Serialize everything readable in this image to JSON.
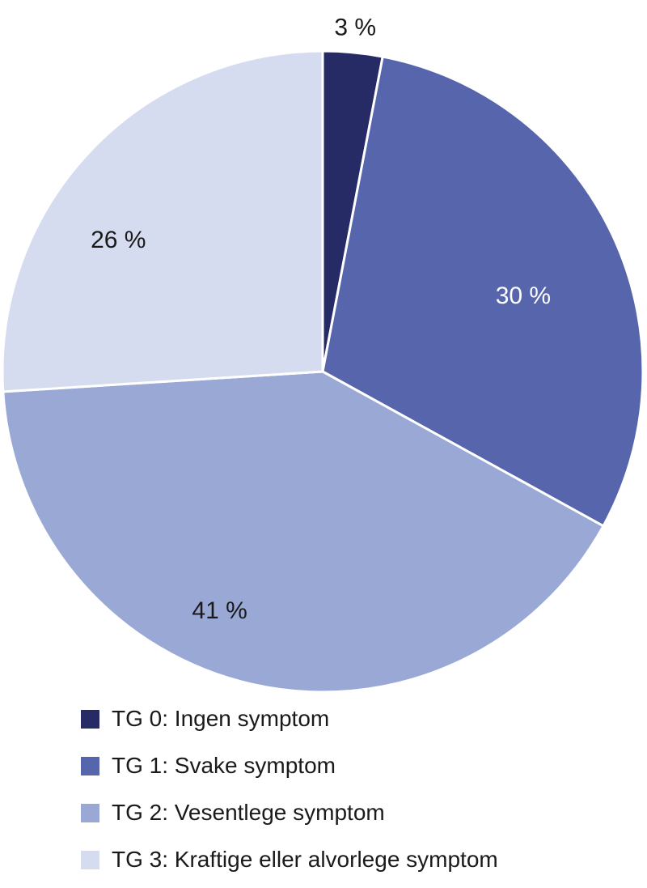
{
  "chart_data": {
    "type": "pie",
    "title": "",
    "categories": [
      "TG 0: Ingen symptom",
      "TG 1: Svake symptom",
      "TG 2: Vesentlege symptom",
      "TG 3: Kraftige eller alvorlege symptom"
    ],
    "values": [
      3,
      30,
      41,
      26
    ],
    "unit": "%",
    "slice_labels": [
      "3 %",
      "30 %",
      "41 %",
      "26 %"
    ],
    "colors": [
      "#262B66",
      "#5766AC",
      "#9AA8D6",
      "#D6DCF0"
    ],
    "label_colors": [
      "#1a1a1a",
      "#ffffff",
      "#1a1a1a",
      "#1a1a1a"
    ],
    "separator_color": "#ffffff",
    "start_angle_deg": 0,
    "direction": "clockwise",
    "legend_position": "bottom-left",
    "label_positions": [
      {
        "a": 5.4,
        "r": 1.08
      },
      {
        "a": 69.1,
        "r": 0.67
      },
      {
        "a": 203.4,
        "r": 0.81
      },
      {
        "a": 302.9,
        "r": 0.76
      }
    ]
  }
}
